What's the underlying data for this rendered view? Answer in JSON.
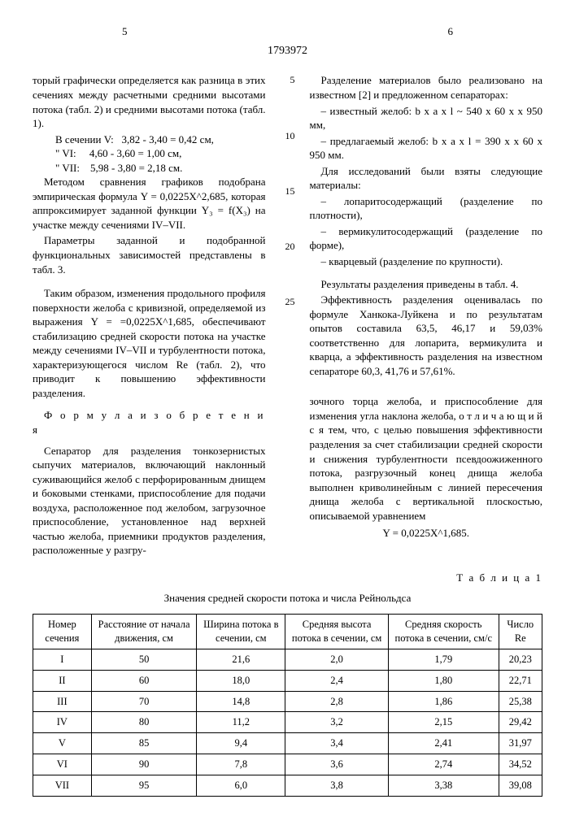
{
  "page_left_num": "5",
  "page_right_num": "6",
  "doc_number": "1793972",
  "line_numbers": [
    "5",
    "10",
    "15",
    "20",
    "25"
  ],
  "left_col": {
    "p1": "торый графически определяется как разница в этих сечениях между расчетными средними высотами потока (табл. 2) и средними высотами потока (табл. 1).",
    "calc_lead": "В сечении V:",
    "calc1": "3,82 - 3,40 = 0,42 см,",
    "calc2_lead": "\"        VI:",
    "calc2": "4,60 - 3,60 = 1,00 см,",
    "calc3_lead": "\"       VII:",
    "calc3": "5,98 - 3,80 = 2,18 см.",
    "p2": "Методом сравнения графиков подобрана эмпирическая формула Y = 0,0225X^2,685, которая аппроксимирует заданной функции Y₃ = f(X₃) на участке между сечениями IV–VII.",
    "p3": "Параметры заданной и подобранной функциональных зависимостей представлены в табл. 3.",
    "p4": "Таким образом, изменения продольного профиля поверхности желоба с кривизной, определяемой из выражения Y = =0,0225X^1,685, обеспечивают стабилизацию средней скорости потока на участке между сечениями IV–VII и турбулентности потока, характеризующегося числом Re (табл. 2), что приводит к повышению эффективности разделения.",
    "formula_title": "Ф о р м у л а  и з о б р е т е н и я",
    "p5": "Сепаратор для разделения тонкозернистых сыпучих материалов, включающий наклонный суживающийся желоб с перфорированным днищем и боковыми стенками, приспособление для подачи воздуха, расположенное под желобом, загрузочное приспособление, установленное над верхней частью желоба, приемники продуктов разделения, расположенные у разгру-"
  },
  "right_col": {
    "p1": "Разделение материалов было реализовано на известном [2] и предложенном сепараторах:",
    "p2": "– известный желоб: b x a x l ~ 540 x 60 x x 950 мм,",
    "p3": "– предлагаемый желоб: b x a x l = 390 x x 60 x 950 мм.",
    "p4": "Для исследований были взяты следующие материалы:",
    "p5": "– лопаритосодержащий (разделение по плотности),",
    "p6": "– вермикулитосодержащий (разделение по форме),",
    "p7": "– кварцевый (разделение по крупности).",
    "p8": "Результаты разделения приведены в табл. 4.",
    "p9": "Эффективность разделения оценивалась по формуле Ханкока-Луйкена и по результатам опытов составила 63,5, 46,17 и 59,03% соответственно для лопарита, вермикулита и кварца, а эффективность разделения на известном сепараторе 60,3, 41,76 и 57,61%.",
    "p10": "зочного торца желоба, и приспособление для изменения угла наклона желоба, о т л и ч а ю щ и й с я тем, что, с целью повышения эффективности разделения за счет стабилизации средней скорости и снижения турбулентности псевдоожиженного потока, разгрузочный конец днища желоба выполнен криволинейным с линией пересечения днища желоба с вертикальной плоскостью, описываемой уравнением",
    "eq": "Y = 0,0225X^1,685."
  },
  "table1": {
    "caption": "Т а б л и ц а 1",
    "title": "Значения средней скорости потока и числа Рейнольдса",
    "headers": [
      "Номер сечения",
      "Расстояние от начала движения, см",
      "Ширина потока в сечении, см",
      "Средняя высота потока в сечении, см",
      "Средняя скорость потока в сечении, см/с",
      "Число Re"
    ],
    "rows": [
      [
        "I",
        "50",
        "21,6",
        "2,0",
        "1,79",
        "20,23"
      ],
      [
        "II",
        "60",
        "18,0",
        "2,4",
        "1,80",
        "22,71"
      ],
      [
        "III",
        "70",
        "14,8",
        "2,8",
        "1,86",
        "25,38"
      ],
      [
        "IV",
        "80",
        "11,2",
        "3,2",
        "2,15",
        "29,42"
      ],
      [
        "V",
        "85",
        "9,4",
        "3,4",
        "2,41",
        "31,97"
      ],
      [
        "VI",
        "90",
        "7,8",
        "3,6",
        "2,74",
        "34,52"
      ],
      [
        "VII",
        "95",
        "6,0",
        "3,8",
        "3,38",
        "39,08"
      ]
    ]
  }
}
